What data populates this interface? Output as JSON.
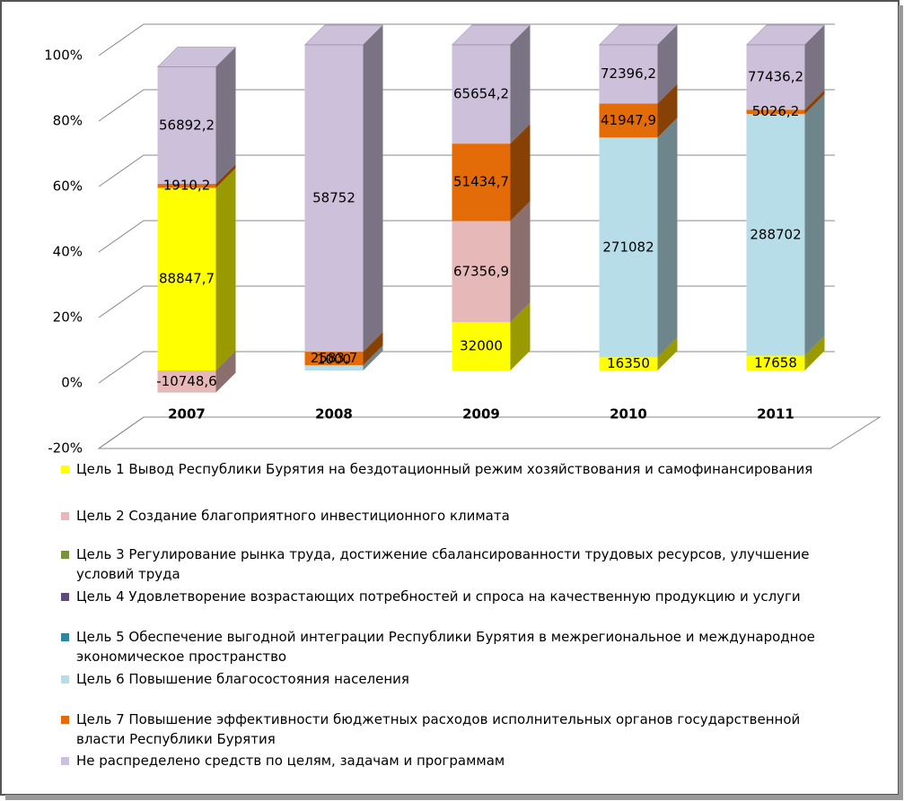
{
  "chart_data": {
    "type": "bar",
    "stacking": "percent",
    "categories": [
      "2007",
      "2008",
      "2009",
      "2010",
      "2011"
    ],
    "ylim": [
      -20,
      100
    ],
    "yticks": [
      {
        "value": -20,
        "label": "-20%"
      },
      {
        "value": 0,
        "label": "0%"
      },
      {
        "value": 20,
        "label": "20%"
      },
      {
        "value": 40,
        "label": "40%"
      },
      {
        "value": 60,
        "label": "60%"
      },
      {
        "value": 80,
        "label": "80%"
      },
      {
        "value": 100,
        "label": "100%"
      }
    ],
    "grid": true,
    "legend": "bottom",
    "series": [
      {
        "name": "Цель 1 Вывод Республики Бурятия на бездотационный режим хозяйствования и самофинансирования",
        "color": "#ffff00",
        "values": [
          88847.7,
          null,
          32000,
          16350,
          17658
        ],
        "value_labels": [
          "88847,7",
          null,
          "32000",
          "16350",
          "17658"
        ]
      },
      {
        "name": "Цель 2 Создание благоприятного инвестиционного  климата",
        "color": "#e6b9b8",
        "values": [
          -10748.6,
          null,
          67356.9,
          null,
          null
        ],
        "value_labels": [
          "-10748,6",
          null,
          "67356,9",
          null,
          null
        ]
      },
      {
        "name": "Цель 3 Регулирование рынка труда, достижение сбалансированности трудовых ресурсов, улучшение условий труда",
        "color": "#77933c",
        "values": [
          null,
          null,
          null,
          null,
          null
        ],
        "value_labels": [
          null,
          null,
          null,
          null,
          null
        ]
      },
      {
        "name": "Цель 4 Удовлетворение возрастающих потребностей и спроса на качественную продукцию и услуги",
        "color": "#604a7b",
        "values": [
          null,
          null,
          null,
          null,
          null
        ],
        "value_labels": [
          null,
          null,
          null,
          null,
          null
        ]
      },
      {
        "name": "Цель 5 Обеспечение выгодной интеграции Республики Бурятия в межрегиональное и международное экономическое пространство",
        "color": "#31859c",
        "values": [
          null,
          null,
          null,
          null,
          null
        ],
        "value_labels": [
          null,
          null,
          null,
          null,
          null
        ]
      },
      {
        "name": "Цель 6 Повышение благосостояния населения",
        "color": "#b7dee8",
        "values": [
          null,
          1000,
          null,
          271082,
          288702
        ],
        "value_labels": [
          null,
          "1000",
          null,
          "271082",
          "288702"
        ]
      },
      {
        "name": "Цель 7 Повышение эффективности бюджетных расходов исполнительных органов государственной власти Республики Бурятия",
        "color": "#e36c09",
        "values": [
          1910.2,
          2583.7,
          51434.7,
          41947.9,
          5026.2
        ],
        "value_labels": [
          "1910,2",
          "2583,7",
          "51434,7",
          "41947,9",
          "5026,2"
        ]
      },
      {
        "name": "Не распределено средств по целям, задачам и программам",
        "color": "#ccc0da",
        "values": [
          56892.2,
          58752,
          65654.2,
          72396.2,
          77436.2
        ],
        "value_labels": [
          "56892,2",
          "58752",
          "65654,2",
          "72396,2",
          "77436,2"
        ]
      }
    ]
  }
}
